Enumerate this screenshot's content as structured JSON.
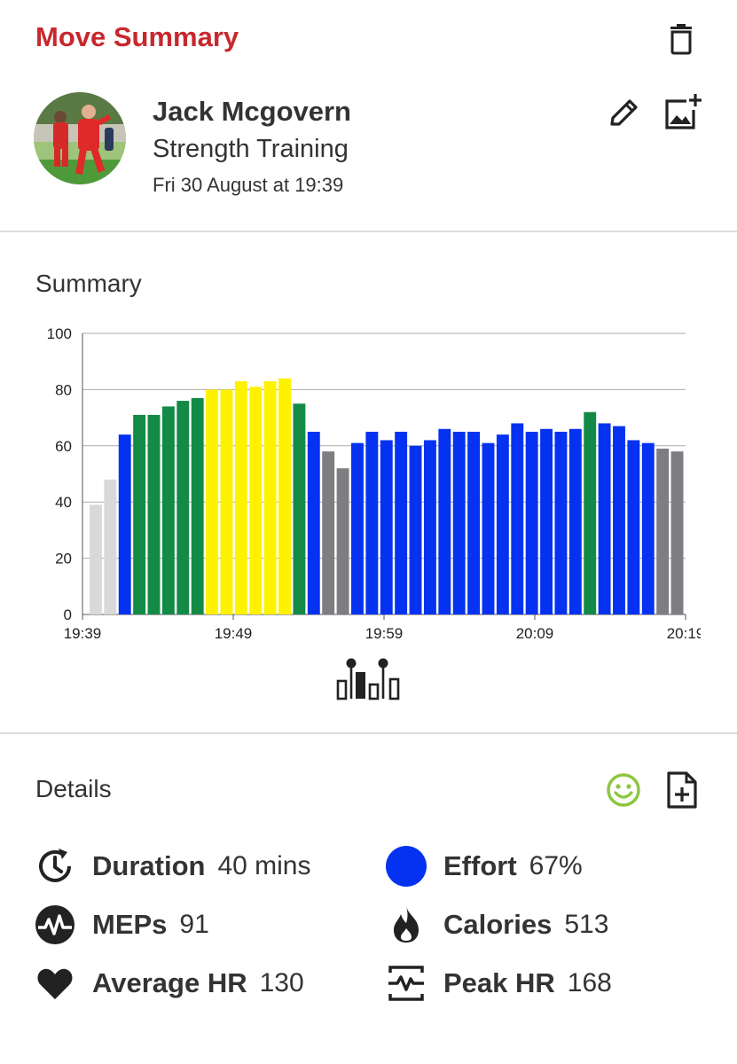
{
  "header": {
    "title": "Move Summary"
  },
  "profile": {
    "name": "Jack Mcgovern",
    "activity": "Strength Training",
    "datetime": "Fri 30 August at 19:39"
  },
  "summary": {
    "title": "Summary"
  },
  "chart_data": {
    "type": "bar",
    "y_ticks": [
      "100",
      "80",
      "60",
      "40",
      "20",
      "0"
    ],
    "ylim": [
      0,
      100
    ],
    "x_ticks": [
      "19:39",
      "19:49",
      "19:59",
      "20:09",
      "20:19"
    ],
    "grid": true,
    "values": [
      39,
      48,
      64,
      71,
      71,
      74,
      76,
      77,
      80,
      80,
      83,
      81,
      83,
      84,
      75,
      65,
      58,
      52,
      61,
      65,
      62,
      65,
      60,
      62,
      66,
      65,
      65,
      61,
      64,
      68,
      65,
      66,
      65,
      66,
      72,
      68,
      67,
      62,
      61,
      59,
      58
    ],
    "zones": [
      "lightgrey",
      "lightgrey",
      "blue",
      "green",
      "green",
      "green",
      "green",
      "green",
      "yellow",
      "yellow",
      "yellow",
      "yellow",
      "yellow",
      "yellow",
      "green",
      "blue",
      "grey",
      "grey",
      "blue",
      "blue",
      "blue",
      "blue",
      "blue",
      "blue",
      "blue",
      "blue",
      "blue",
      "blue",
      "blue",
      "blue",
      "blue",
      "blue",
      "blue",
      "blue",
      "green",
      "blue",
      "blue",
      "blue",
      "blue",
      "grey",
      "grey"
    ],
    "zone_colors": {
      "lightgrey": "#d9d9d9",
      "grey": "#7d7d82",
      "blue": "#0532f0",
      "green": "#138a46",
      "yellow": "#fff200"
    }
  },
  "details": {
    "title": "Details",
    "stats": {
      "duration": {
        "label": "Duration",
        "value": "40 mins"
      },
      "effort": {
        "label": "Effort",
        "value": "67%"
      },
      "meps": {
        "label": "MEPs",
        "value": "91"
      },
      "calories": {
        "label": "Calories",
        "value": "513"
      },
      "avg_hr": {
        "label": "Average HR",
        "value": "130"
      },
      "peak_hr": {
        "label": "Peak HR",
        "value": "168"
      }
    }
  },
  "colors": {
    "brand": "#c8282d",
    "effort_dot": "#0532f0",
    "mood": "#8cc63f"
  },
  "icons": [
    "trash-icon",
    "pencil-icon",
    "add-photo-icon",
    "chart-toggle-icon",
    "smiley-icon",
    "add-note-icon",
    "duration-clock-icon",
    "effort-dot-icon",
    "meps-pulse-icon",
    "calories-flame-icon",
    "heart-icon",
    "peak-hr-icon"
  ]
}
